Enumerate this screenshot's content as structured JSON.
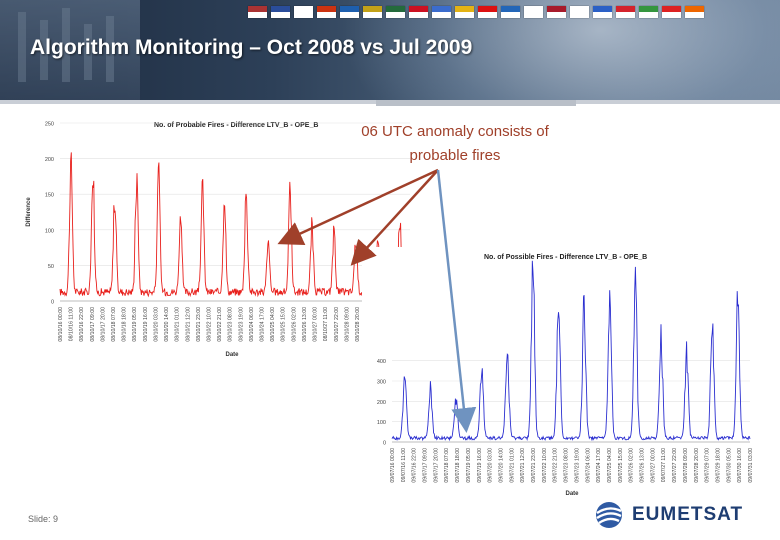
{
  "slide": {
    "title": "Algorithm Monitoring – Oct 2008 vs Jul 2009",
    "annotation": [
      "06 UTC anomaly consists  of",
      "probable fires"
    ],
    "footer": "Slide: 9",
    "logo_text": "EUMETSAT",
    "flag_colors": [
      "#a33",
      "#2a4d9b",
      "#fff",
      "#c31",
      "#1e5fae",
      "#c3a218",
      "#246b3c",
      "#c12",
      "#3b6ccd",
      "#e4b314",
      "#d11",
      "#2366b8",
      "#fff",
      "#a81b2b",
      "#fff",
      "#2b60c6",
      "#d4232c",
      "#35963f",
      "#d22",
      "#e60"
    ]
  },
  "chart_data": [
    {
      "type": "line",
      "title": "No. of Probable Fires - Difference LTV_B - OPE_B",
      "xlabel": "Date",
      "ylabel": "Difference",
      "ylim": [
        0,
        250
      ],
      "yticks": [
        0,
        50,
        100,
        150,
        200,
        250
      ],
      "color": "#e8201c",
      "x_ticks": [
        "08/10/16 00:00",
        "08/10/16 11:00",
        "08/10/16 22:00",
        "08/10/17 09:00",
        "08/10/17 20:00",
        "08/10/18 07:00",
        "08/10/18 18:00",
        "08/10/19 05:00",
        "08/10/19 16:00",
        "08/10/20 03:00",
        "08/10/20 14:00",
        "08/10/21 01:00",
        "08/10/21 12:00",
        "08/10/21 23:00",
        "08/10/22 10:00",
        "08/10/22 21:00",
        "08/10/23 08:00",
        "08/10/23 19:00",
        "08/10/24 06:00",
        "08/10/24 17:00",
        "08/10/25 04:00",
        "08/10/25 15:00",
        "08/10/26 02:00",
        "08/10/26 13:00",
        "08/10/27 00:00",
        "08/10/27 11:00",
        "08/10/27 22:00",
        "08/10/28 09:00",
        "08/10/28 20:00",
        "08/10/29 07:00",
        "08/10/29 18:00",
        "08/10/30 05:00",
        "08/10/30 16:00",
        "08/10/31 03:00"
      ],
      "peaks": [
        205,
        185,
        145,
        175,
        170,
        120,
        165,
        140,
        155,
        85,
        160,
        100,
        95,
        90,
        80,
        110
      ],
      "baseline": 12
    },
    {
      "type": "line",
      "title": "No. of Possible Fires - Difference LTV_B - OPE_B",
      "xlabel": "Date",
      "ylabel": "",
      "ylim": [
        0,
        900
      ],
      "yticks": [
        0,
        100,
        200,
        300,
        400
      ],
      "color": "#2b2fd0",
      "x_ticks": [
        "09/07/16 00:00",
        "09/07/16 11:00",
        "09/07/16 22:00",
        "09/07/17 09:00",
        "09/07/17 20:00",
        "09/07/18 07:00",
        "09/07/18 18:00",
        "09/07/19 05:00",
        "09/07/19 16:00",
        "09/07/20 03:00",
        "09/07/20 14:00",
        "09/07/21 01:00",
        "09/07/21 12:00",
        "09/07/21 23:00",
        "09/07/22 10:00",
        "09/07/22 21:00",
        "09/07/23 08:00",
        "09/07/23 19:00",
        "09/07/24 06:00",
        "09/07/24 17:00",
        "09/07/25 04:00",
        "09/07/25 15:00",
        "09/07/26 02:00",
        "09/07/26 13:00",
        "09/07/27 00:00",
        "09/07/27 11:00",
        "09/07/27 22:00",
        "09/07/28 09:00",
        "09/07/28 20:00",
        "09/07/29 07:00",
        "09/07/29 18:00",
        "09/07/30 05:00",
        "09/07/30 16:00",
        "09/07/31 03:00"
      ],
      "peaks": [
        330,
        260,
        210,
        360,
        440,
        840,
        680,
        680,
        700,
        770,
        510,
        420,
        580,
        710
      ],
      "baseline": 18
    }
  ]
}
